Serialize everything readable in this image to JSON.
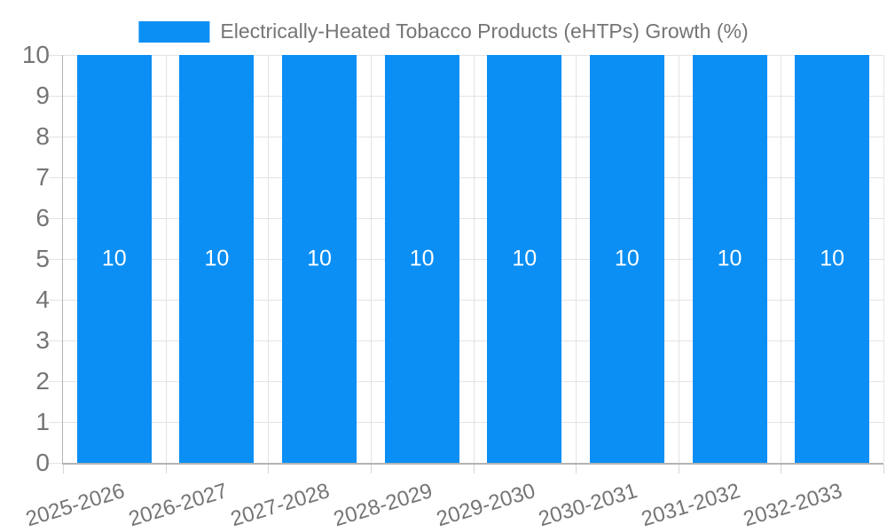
{
  "legend": {
    "label": "Electrically-Heated Tobacco Products (eHTPs) Growth (%)"
  },
  "colors": {
    "bar": "#0b8ff5",
    "grid": "#e3e3e3",
    "axis": "#b3b3b3",
    "tick": "#d6d6d6",
    "text": "#757575",
    "bar_label": "#ffffff",
    "background": "#ffffff"
  },
  "chart_data": {
    "type": "bar",
    "title": "",
    "legend": [
      {
        "label": "Electrically-Heated Tobacco Products (eHTPs) Growth (%)",
        "color": "#0b8ff5"
      }
    ],
    "legend_position": "top-center",
    "categories": [
      "2025-2026",
      "2026-2027",
      "2027-2028",
      "2028-2029",
      "2029-2030",
      "2030-2031",
      "2031-2032",
      "2032-2033"
    ],
    "series": [
      {
        "name": "Electrically-Heated Tobacco Products (eHTPs) Growth (%)",
        "values": [
          10,
          10,
          10,
          10,
          10,
          10,
          10,
          10
        ],
        "color": "#0b8ff5"
      }
    ],
    "bar_value_labels_shown": true,
    "xlabel": "",
    "ylabel": "",
    "ylim": [
      0,
      10
    ],
    "yticks": [
      0,
      1,
      2,
      3,
      4,
      5,
      6,
      7,
      8,
      9,
      10
    ],
    "grid": true,
    "x_label_rotation_deg": -17
  }
}
